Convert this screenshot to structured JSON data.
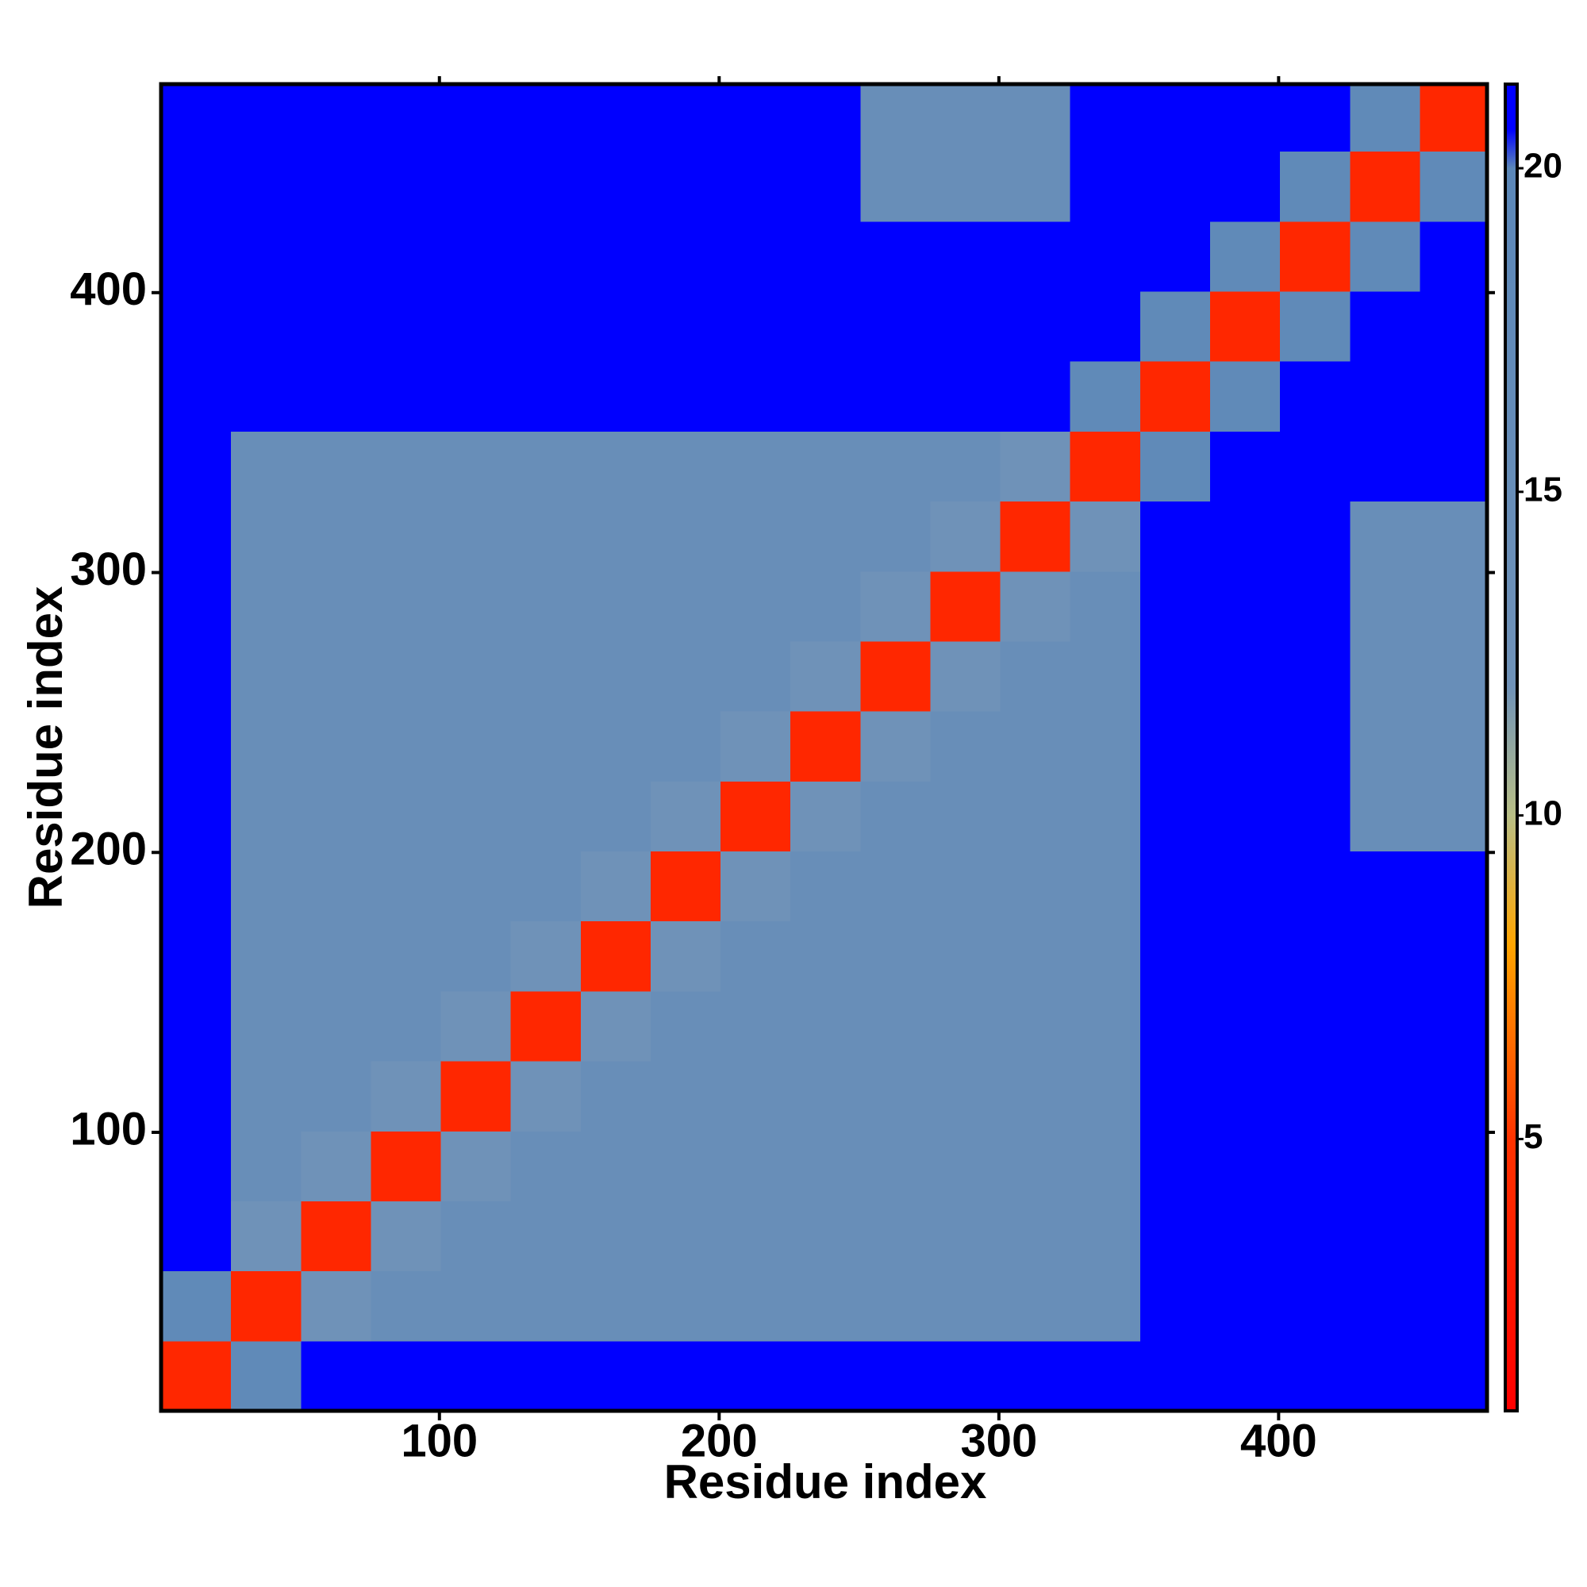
{
  "chart_data": {
    "type": "heatmap",
    "x_label": "Residue index",
    "y_label": "Residue index",
    "bins": [
      0.5,
      25.5,
      50.5,
      75.5,
      100.5,
      125.5,
      150.5,
      175.5,
      200.5,
      225.5,
      250.5,
      275.5,
      300.5,
      325.5,
      350.5,
      375.5,
      400.5,
      425.5,
      450.5,
      474.5
    ],
    "z": [
      [
        4,
        18,
        21,
        21,
        21,
        21,
        21,
        21,
        21,
        21,
        21,
        21,
        21,
        21,
        21,
        21,
        21,
        21,
        21
      ],
      [
        18,
        4,
        12,
        15,
        15,
        15,
        15,
        15,
        15,
        15,
        15,
        15,
        15,
        15,
        21,
        21,
        21,
        21,
        21
      ],
      [
        21,
        12,
        4,
        12,
        15,
        15,
        15,
        15,
        15,
        15,
        15,
        15,
        15,
        15,
        21,
        21,
        21,
        21,
        21
      ],
      [
        21,
        15,
        12,
        4,
        12,
        15,
        15,
        15,
        15,
        15,
        15,
        15,
        15,
        15,
        21,
        21,
        21,
        21,
        21
      ],
      [
        21,
        15,
        15,
        12,
        4,
        12,
        15,
        15,
        15,
        15,
        15,
        15,
        15,
        15,
        21,
        21,
        21,
        21,
        21
      ],
      [
        21,
        15,
        15,
        15,
        12,
        4,
        12,
        15,
        15,
        15,
        15,
        15,
        15,
        15,
        21,
        21,
        21,
        21,
        21
      ],
      [
        21,
        15,
        15,
        15,
        15,
        12,
        4,
        12,
        15,
        15,
        15,
        15,
        15,
        15,
        21,
        21,
        21,
        21,
        21
      ],
      [
        21,
        15,
        15,
        15,
        15,
        15,
        12,
        4,
        12,
        15,
        15,
        15,
        15,
        15,
        21,
        21,
        21,
        21,
        21
      ],
      [
        21,
        15,
        15,
        15,
        15,
        15,
        15,
        12,
        4,
        12,
        15,
        15,
        15,
        15,
        21,
        21,
        21,
        15,
        15
      ],
      [
        21,
        15,
        15,
        15,
        15,
        15,
        15,
        15,
        12,
        4,
        12,
        15,
        15,
        15,
        21,
        21,
        21,
        15,
        15
      ],
      [
        21,
        15,
        15,
        15,
        15,
        15,
        15,
        15,
        15,
        12,
        4,
        12,
        15,
        15,
        21,
        21,
        21,
        15,
        15
      ],
      [
        21,
        15,
        15,
        15,
        15,
        15,
        15,
        15,
        15,
        15,
        12,
        4,
        12,
        15,
        21,
        21,
        21,
        15,
        15
      ],
      [
        21,
        15,
        15,
        15,
        15,
        15,
        15,
        15,
        15,
        15,
        15,
        12,
        4,
        12,
        21,
        21,
        21,
        15,
        15
      ],
      [
        21,
        15,
        15,
        15,
        15,
        15,
        15,
        15,
        15,
        15,
        15,
        15,
        12,
        4,
        18,
        21,
        21,
        21,
        21
      ],
      [
        21,
        21,
        21,
        21,
        21,
        21,
        21,
        21,
        21,
        21,
        21,
        21,
        21,
        18,
        4,
        18,
        21,
        21,
        21
      ],
      [
        21,
        21,
        21,
        21,
        21,
        21,
        21,
        21,
        21,
        21,
        21,
        21,
        21,
        21,
        18,
        4,
        18,
        21,
        21
      ],
      [
        21,
        21,
        21,
        21,
        21,
        21,
        21,
        21,
        21,
        21,
        21,
        21,
        21,
        21,
        21,
        18,
        4,
        18,
        21
      ],
      [
        21,
        21,
        21,
        21,
        21,
        21,
        21,
        21,
        21,
        21,
        15,
        15,
        15,
        21,
        21,
        21,
        18,
        4,
        18
      ],
      [
        21,
        21,
        21,
        21,
        21,
        21,
        21,
        21,
        21,
        21,
        15,
        15,
        15,
        21,
        21,
        21,
        21,
        18,
        4
      ]
    ],
    "xlim": [
      0.5,
      474.5
    ],
    "ylim": [
      0.5,
      474.5
    ],
    "xticks": [
      100,
      200,
      300,
      400
    ],
    "yticks": [
      100,
      200,
      300,
      400
    ],
    "clim": [
      0.8,
      21.3
    ],
    "cticks": [
      5,
      10,
      15,
      20
    ],
    "colorscale": [
      [
        0.8,
        "#ff0000"
      ],
      [
        5,
        "#ff3300"
      ],
      [
        8,
        "#ffa500"
      ],
      [
        10,
        "#b9bf86"
      ],
      [
        12,
        "#6f92b8"
      ],
      [
        20,
        "#5b87b8"
      ],
      [
        20.6,
        "#0000ff"
      ],
      [
        21.3,
        "#0000ff"
      ]
    ]
  }
}
